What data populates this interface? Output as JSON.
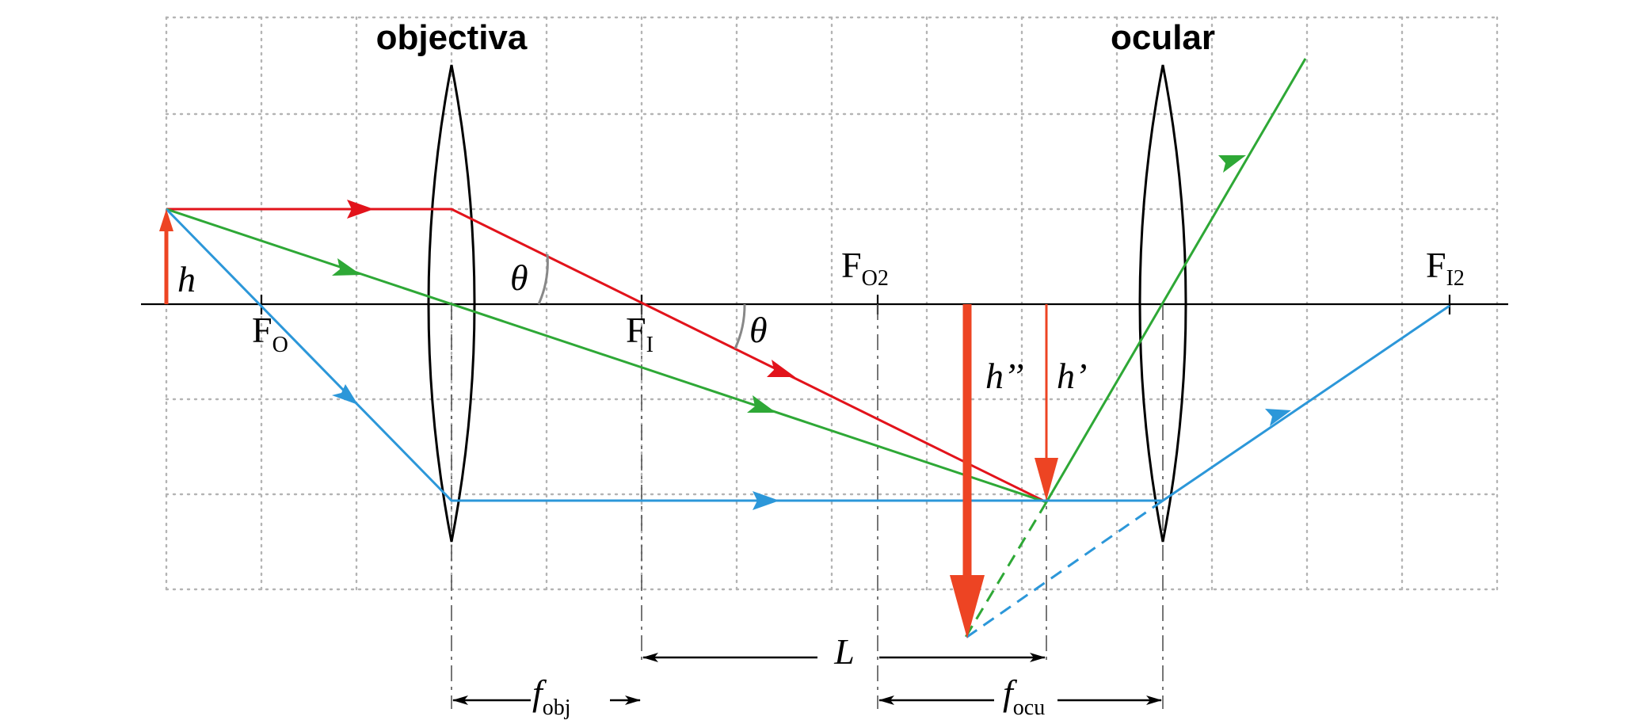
{
  "diagram": {
    "lens_labels": {
      "objective": "objectiva",
      "eyepiece": "ocular"
    },
    "symbols": {
      "object_height": "h",
      "image_height": "h’",
      "final_image_height": "h’’",
      "angle_1": "θ",
      "angle_2": "θ",
      "length": "L"
    },
    "focal_points": {
      "fo": {
        "main": "F",
        "sub": "O"
      },
      "fi": {
        "main": "F",
        "sub": "I"
      },
      "fo2": {
        "main": "F",
        "sub": "O2"
      },
      "fi2": {
        "main": "F",
        "sub": "I2"
      }
    },
    "dimensions": {
      "f_obj": {
        "main": "f",
        "sub": "obj"
      },
      "f_ocu": {
        "main": "f",
        "sub": "ocu"
      }
    },
    "colors": {
      "red_ray": "#e2131b",
      "green_ray": "#2ea836",
      "blue_ray": "#2c97d9",
      "object_arrow": "#ed4423",
      "image_arrow": "#ed4423",
      "lens_outline": "#000000",
      "grid": "#b4b4b4"
    }
  }
}
